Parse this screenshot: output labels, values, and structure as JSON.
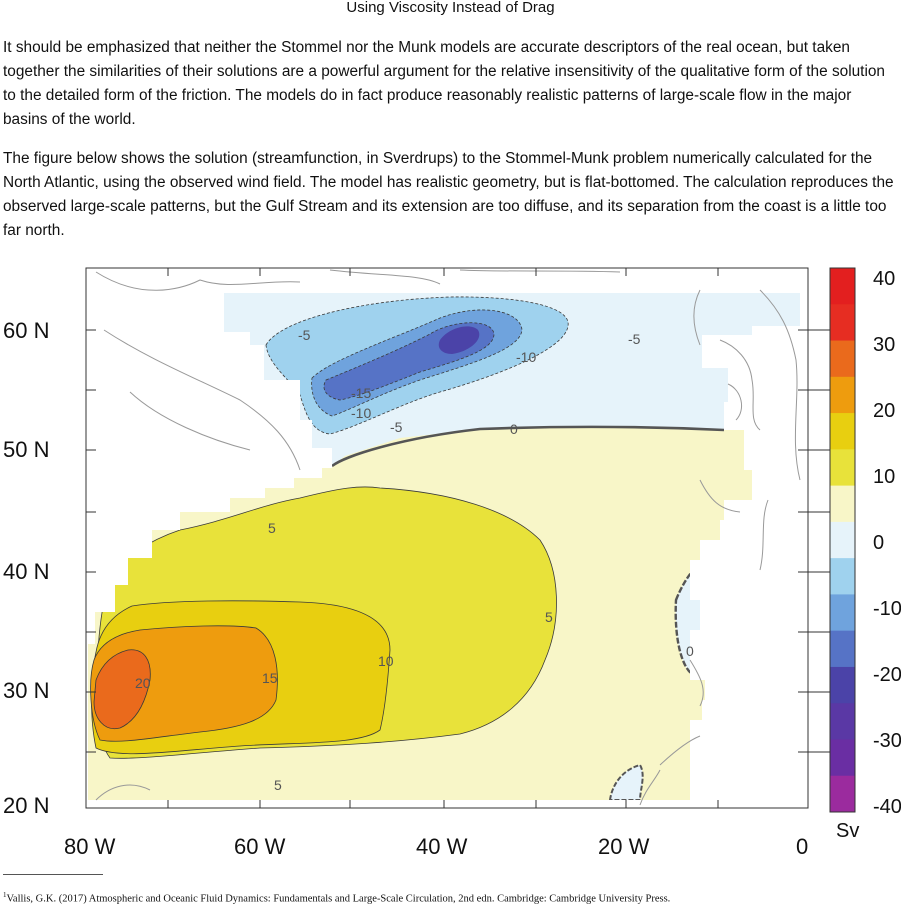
{
  "section_title": "Using Viscosity Instead of Drag",
  "paragraphs": [
    "It should be emphasized that neither the Stommel nor the Munk models are accurate descriptors of the real ocean, but taken together the similarities of their solutions are a powerful argument for the relative insensitivity of the qualitative form of the solution to the detailed form of the friction. The models do in fact produce reasonably realistic patterns of large-scale flow in the major basins of the world.",
    "The figure below shows the solution (streamfunction, in Sverdrups) to the Stommel-Munk problem numerically calculated for the North Atlantic, using the observed wind field. The model has realistic geometry, but is flat-bottomed. The calculation reproduces the observed large-scale patterns, but the Gulf Stream and its extension are too diffuse, and its separation from the coast is a little too far north."
  ],
  "figure": {
    "y_axis_labels": [
      "60 N",
      "50 N",
      "40 N",
      "30 N",
      "20 N"
    ],
    "x_axis_labels": [
      "80 W",
      "60 W",
      "40 W",
      "20 W",
      "0"
    ],
    "contour_labels": [
      "-5",
      "-10",
      "-15",
      "-10",
      "-5",
      "-5",
      "0",
      "5",
      "5",
      "5",
      "10",
      "15",
      "20",
      "0"
    ],
    "colorbar_labels": [
      "40",
      "30",
      "20",
      "10",
      "0",
      "-10",
      "-20",
      "-30",
      "-40"
    ],
    "colorbar_unit": "Sv",
    "colorbar_colors": [
      "#e31f1f",
      "#e62d22",
      "#ea6a1c",
      "#ee9c0e",
      "#e8cf10",
      "#e8e23a",
      "#f8f6c8",
      "#e6f3fa",
      "#9fd2ee",
      "#6fa3dd",
      "#5673c6",
      "#4b43a8",
      "#5a38a5",
      "#6a2ea3",
      "#9b2b9e"
    ],
    "palette": {
      "land": "#ffffff",
      "coast": "#999999",
      "sv_pos_0_5": "#f8f6c8",
      "sv_pos_5_10": "#e8e23a",
      "sv_pos_10_15": "#e8cf10",
      "sv_pos_15_20": "#ee9c0e",
      "sv_pos_20_25": "#ea6a1c",
      "sv_neg_0_5": "#e6f3fa",
      "sv_neg_5_10": "#9fd2ee",
      "sv_neg_10_15": "#6fa3dd",
      "sv_neg_15_20": "#5673c6",
      "sv_neg_20_25": "#4b43a8"
    },
    "chart_data": {
      "type": "heatmap",
      "variable": "streamfunction",
      "units": "Sv",
      "x": [
        "80 W",
        "60 W",
        "40 W",
        "20 W",
        "0"
      ],
      "y": [
        "60 N",
        "50 N",
        "40 N",
        "30 N",
        "20 N"
      ],
      "contour_levels": [
        -20,
        -15,
        -10,
        -5,
        0,
        5,
        10,
        15,
        20
      ],
      "colorbar_range": [
        -40,
        40
      ]
    }
  },
  "footnote": {
    "marker": "1",
    "text": "Vallis, G.K. (2017) Atmospheric and Oceanic Fluid Dynamics: Fundamentals and Large-Scale Circulation, 2nd edn. Cambridge: Cambridge University Press."
  }
}
